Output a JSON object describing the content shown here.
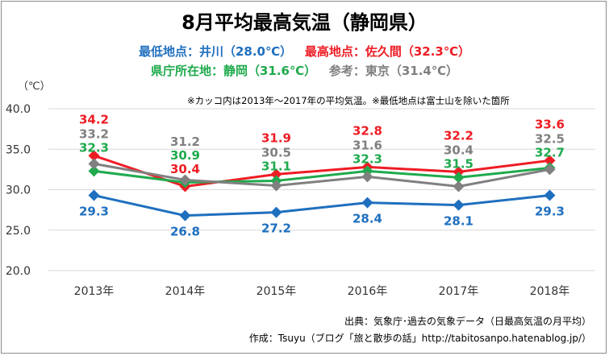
{
  "header": {
    "title": "8月平均最高気温（静岡県）",
    "lowest_prefix": "最低地点：",
    "lowest_value": "井川（28.0℃）",
    "highest_prefix": "最高地点：",
    "highest_value": "佐久間（32.3℃）",
    "office_prefix": "県庁所在地：",
    "office_value": "静岡（31.6℃）",
    "ref_prefix": "参考：",
    "ref_value": "東京（31.4℃）"
  },
  "unit_label": "（℃）",
  "note": "※カッコ内は2013年～2017年の平均気温。※最低地点は富士山を除いた箇所",
  "source": {
    "line1": "出典：気象庁･過去の気象データ（日最高気温の月平均）",
    "line2": "作成：Tsuyu（ブログ「旅と散歩の話」http://tabitosanpo.hatenablog.jp/）"
  },
  "chart_data": {
    "type": "line",
    "categories": [
      "2013年",
      "2014年",
      "2015年",
      "2016年",
      "2017年",
      "2018年"
    ],
    "ylim": [
      20.0,
      40.0
    ],
    "yticks": [
      "20.0",
      "25.0",
      "30.0",
      "35.0",
      "40.0"
    ],
    "grid": true,
    "series": [
      {
        "name": "井川",
        "color": "#1f6fbf",
        "values": [
          29.3,
          26.8,
          27.2,
          28.4,
          28.1,
          29.3
        ],
        "labels": [
          "29.3",
          "26.8",
          "27.2",
          "28.4",
          "28.1",
          "29.3"
        ]
      },
      {
        "name": "佐久間",
        "color": "#ee1c24",
        "values": [
          34.2,
          30.4,
          31.9,
          32.8,
          32.2,
          33.6
        ],
        "labels": [
          "34.2",
          "30.4",
          "31.9",
          "32.8",
          "32.2",
          "33.6"
        ]
      },
      {
        "name": "静岡",
        "color": "#1faa4d",
        "values": [
          32.3,
          30.9,
          31.1,
          32.3,
          31.5,
          32.7
        ],
        "labels": [
          "32.3",
          "30.9",
          "31.1",
          "32.3",
          "31.5",
          "32.7"
        ]
      },
      {
        "name": "東京",
        "color": "#808080",
        "values": [
          33.2,
          31.2,
          30.5,
          31.6,
          30.4,
          32.5
        ],
        "labels": [
          "33.2",
          "31.2",
          "30.5",
          "31.6",
          "30.4",
          "32.5"
        ]
      }
    ]
  }
}
